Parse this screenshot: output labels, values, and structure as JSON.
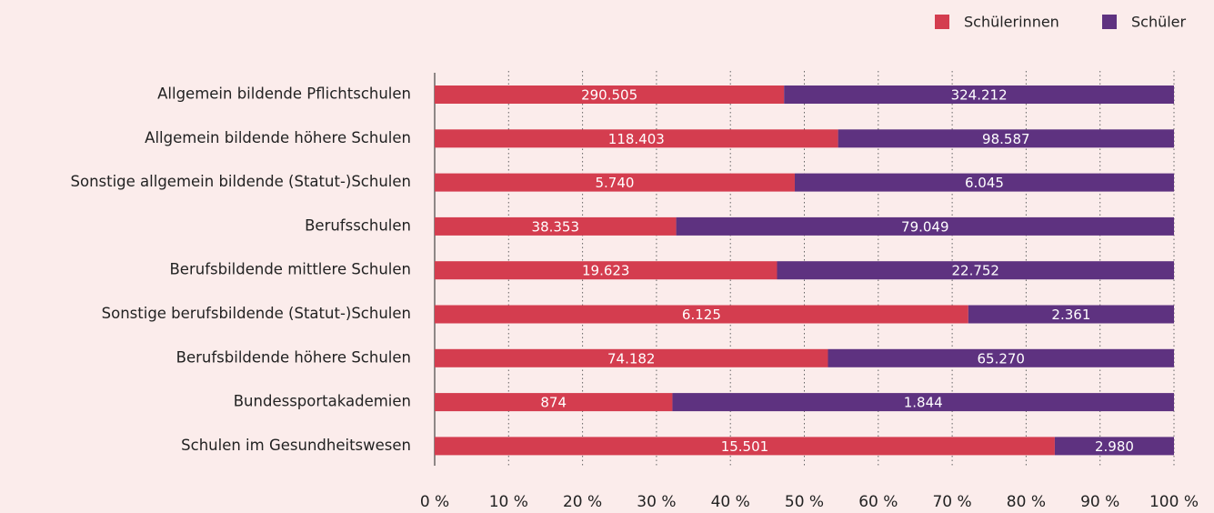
{
  "chart_data": {
    "type": "stacked-bar-100",
    "categories": [
      "Allgemein bildende Pflichtschulen",
      "Allgemein bildende höhere Schulen",
      "Sonstige allgemein bildende (Statut-)Schulen",
      "Berufsschulen",
      "Berufsbildende mittlere Schulen",
      "Sonstige berufsbildende (Statut-)Schulen",
      "Berufsbildende höhere Schulen",
      "Bundessportakademien",
      "Schulen im Gesundheitswesen"
    ],
    "series": [
      {
        "name": "Schülerinnen",
        "color": "#d43d4f",
        "values": [
          290505,
          118403,
          5740,
          38353,
          19623,
          6125,
          74182,
          874,
          15501
        ],
        "value_labels": [
          "290.505",
          "118.403",
          "5.740",
          "38.353",
          "19.623",
          "6.125",
          "74.182",
          "874",
          "15.501"
        ]
      },
      {
        "name": "Schüler",
        "color": "#5e3280",
        "values": [
          324212,
          98587,
          6045,
          79049,
          22752,
          2361,
          65270,
          1844,
          2980
        ],
        "value_labels": [
          "324.212",
          "98.587",
          "6.045",
          "79.049",
          "22.752",
          "2.361",
          "65.270",
          "1.844",
          "2.980"
        ]
      }
    ],
    "xlim": [
      0,
      100
    ],
    "xticks": [
      {
        "value": 0,
        "label": "0 %"
      },
      {
        "value": 10,
        "label": "10 %"
      },
      {
        "value": 20,
        "label": "20 %"
      },
      {
        "value": 30,
        "label": "30 %"
      },
      {
        "value": 40,
        "label": "40 %"
      },
      {
        "value": 50,
        "label": "50 %"
      },
      {
        "value": 60,
        "label": "60 %"
      },
      {
        "value": 70,
        "label": "70 %"
      },
      {
        "value": 80,
        "label": "80 %"
      },
      {
        "value": 90,
        "label": "90 %"
      },
      {
        "value": 100,
        "label": "100 %"
      }
    ],
    "grid": true,
    "legend": "top-right"
  }
}
